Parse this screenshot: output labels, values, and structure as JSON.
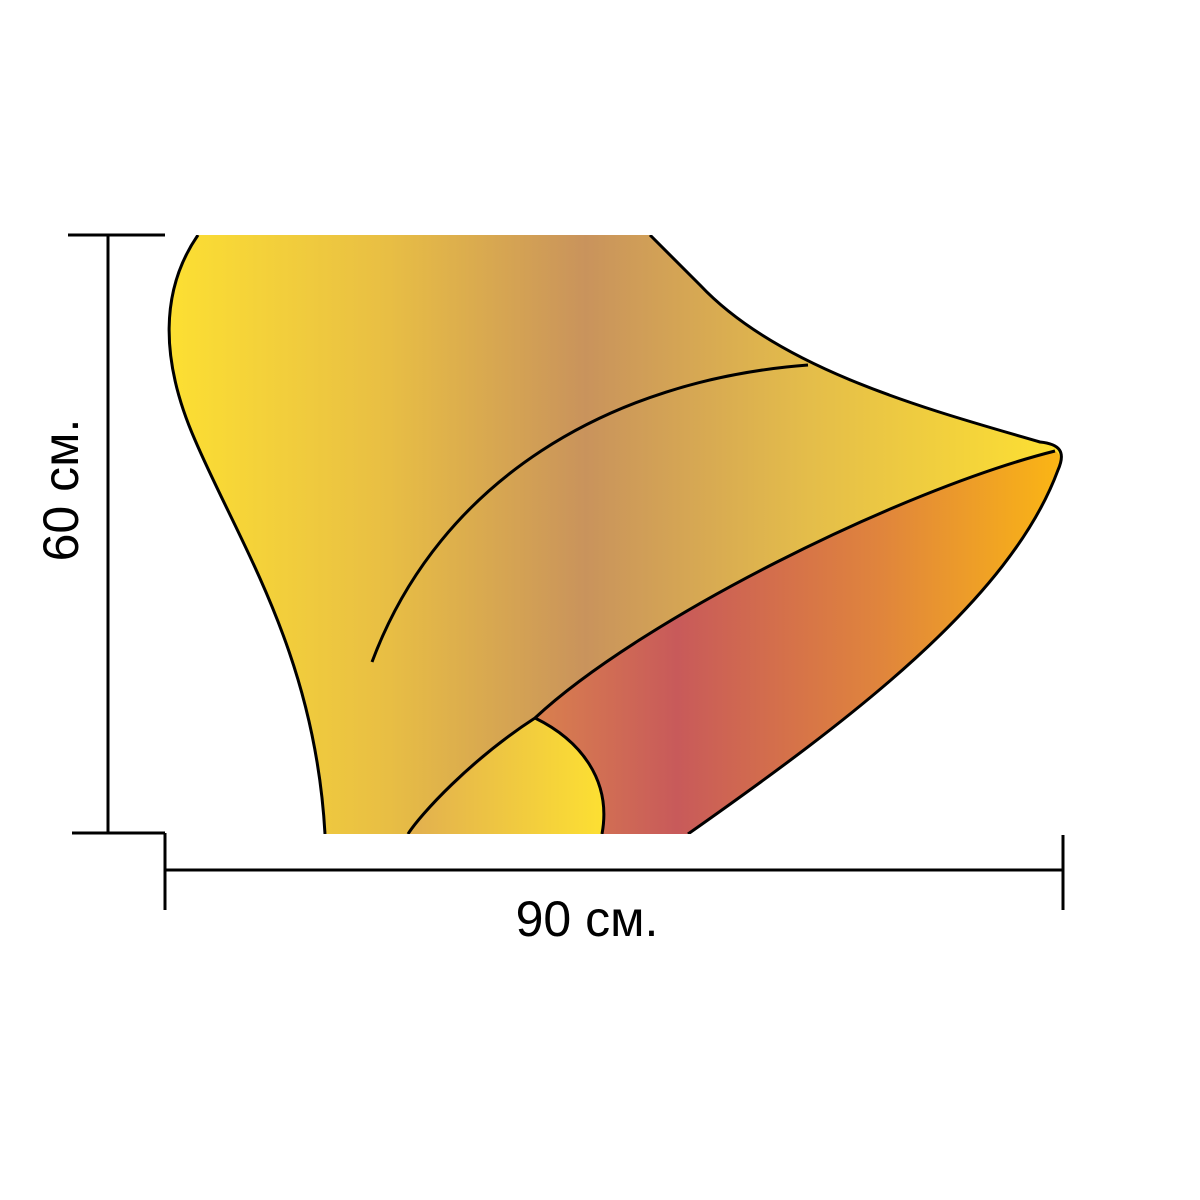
{
  "dimensions": {
    "height_label": "60 см.",
    "width_label": "90 см."
  },
  "colors": {
    "outline": "#000000",
    "bell_edge": "#FDE032",
    "bell_mid": "#C9935C",
    "inner_edge": "#FBB614",
    "inner_mid": "#C85A5A",
    "background": "#ffffff"
  }
}
